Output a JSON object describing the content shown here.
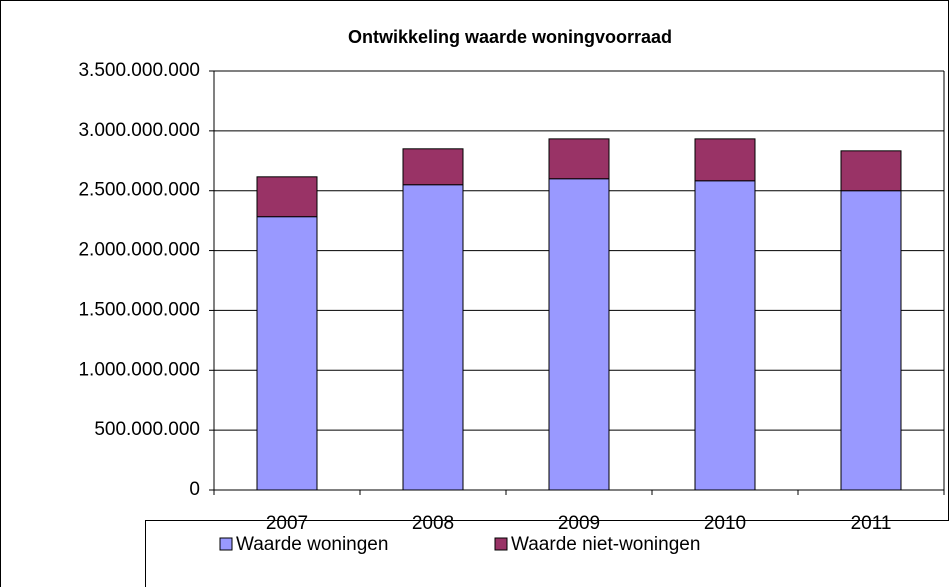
{
  "chart_data": {
    "type": "stacked_bar",
    "title": "Ontwikkeling waarde woningvoorraad",
    "categories": [
      "2007",
      "2008",
      "2009",
      "2010",
      "2011"
    ],
    "series": [
      {
        "name": "Waarde woningen",
        "color": "#9999ff",
        "values": [
          2283000000,
          2550000000,
          2600000000,
          2583000000,
          2500000000
        ]
      },
      {
        "name": "Waarde niet-woningen",
        "color": "#993366",
        "values": [
          333000000,
          300000000,
          333000000,
          350000000,
          333000000
        ]
      }
    ],
    "ylim": [
      0,
      3500000000
    ],
    "yticks": [
      0,
      {
        "value": 500000000,
        "label": "500.000.000"
      },
      {
        "value": 1000000000,
        "label": "1.000.000.000"
      },
      {
        "value": 1500000000,
        "label": "1.500.000.000"
      },
      {
        "value": 2000000000,
        "label": "2.000.000.000"
      },
      {
        "value": 2500000000,
        "label": "2.500.000.000"
      },
      {
        "value": 3000000000,
        "label": "3.000.000.000"
      },
      {
        "value": 3500000000,
        "label": "3.500.000.000"
      }
    ],
    "grid": true,
    "legend": "bottom"
  }
}
